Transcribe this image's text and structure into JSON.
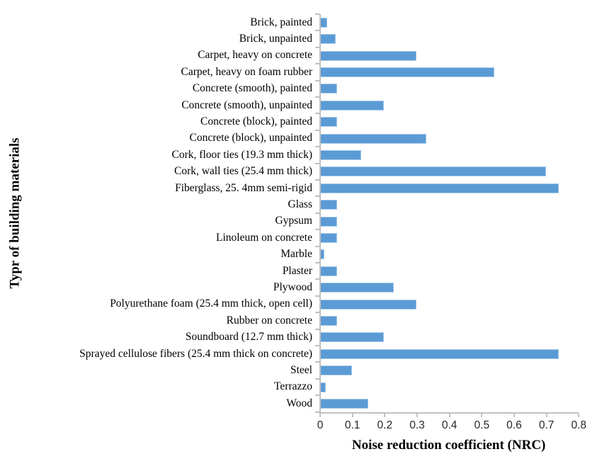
{
  "chart_data": {
    "type": "bar",
    "orientation": "horizontal",
    "title": "",
    "xlabel": "Noise reduction coefficient (NRC)",
    "ylabel": "Typr of building materials",
    "xlim": [
      0,
      0.8
    ],
    "xticks": [
      "0",
      "0.1",
      "0.2",
      "0.3",
      "0.4",
      "0.5",
      "0.6",
      "0.7",
      "0.8"
    ],
    "grid": false,
    "legend": "none",
    "bar_color": "#5B9BD5",
    "bar_border_color": "#A9CBEA",
    "axis_color": "#C0C0C0",
    "categories": [
      "Brick, painted",
      "Brick, unpainted",
      "Carpet, heavy on concrete",
      "Carpet, heavy on foam rubber",
      "Concrete (smooth), painted",
      "Concrete (smooth), unpainted",
      "Concrete (block), painted",
      "Concrete (block), unpainted",
      "Cork, floor ties (19.3 mm thick)",
      "Cork, wall ties (25.4 mm thick)",
      "Fiberglass, 25. 4mm semi-rigid",
      "Glass",
      "Gypsum",
      "Linoleum on concrete",
      "Marble",
      "Plaster",
      "Plywood",
      "Polyurethane foam (25.4 mm thick, open cell)",
      "Rubber on concrete",
      "Soundboard (12.7 mm thick)",
      "Sprayed cellulose fibers (25.4 mm thick on concrete)",
      "Steel",
      "Terrazzo",
      "Wood"
    ],
    "values": [
      0.025,
      0.05,
      0.3,
      0.54,
      0.055,
      0.2,
      0.055,
      0.33,
      0.13,
      0.7,
      0.74,
      0.055,
      0.055,
      0.055,
      0.015,
      0.055,
      0.23,
      0.3,
      0.055,
      0.2,
      0.74,
      0.1,
      0.02,
      0.15
    ]
  }
}
